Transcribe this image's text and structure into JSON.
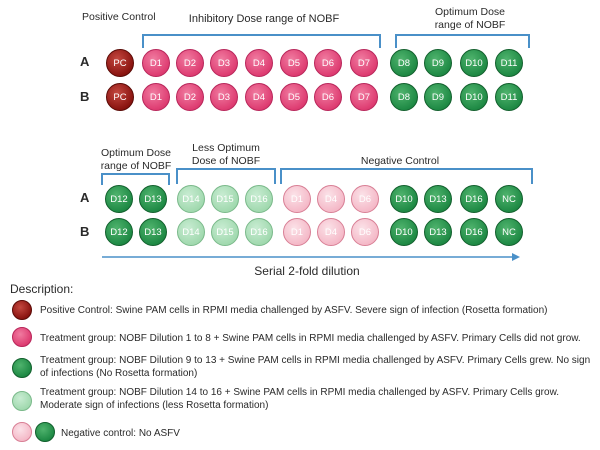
{
  "top_section": {
    "positive_control_label": "Positive Control",
    "inhibitory_label": "Inhibitory Dose range of NOBF",
    "optimum_label_line1": "Optimum Dose",
    "optimum_label_line2": "range of NOBF",
    "rows": [
      {
        "label": "A",
        "wells": [
          "PC",
          "D1",
          "D2",
          "D3",
          "D4",
          "D5",
          "D6",
          "D7",
          "D8",
          "D9",
          "D10",
          "D11"
        ]
      },
      {
        "label": "B",
        "wells": [
          "PC",
          "D1",
          "D2",
          "D3",
          "D4",
          "D5",
          "D6",
          "D7",
          "D8",
          "D9",
          "D10",
          "D11"
        ]
      }
    ]
  },
  "bottom_section": {
    "optimum_label_line1": "Optimum Dose",
    "optimum_label_line2": "range of NOBF",
    "less_optimum_label_line1": "Less Optimum",
    "less_optimum_label_line2": "Dose of NOBF",
    "negative_control_label": "Negative Control",
    "rows": [
      {
        "label": "A",
        "wells": [
          "D12",
          "D13",
          "D14",
          "D15",
          "D16",
          "D1",
          "D4",
          "D6",
          "D10",
          "D13",
          "D16",
          "NC"
        ]
      },
      {
        "label": "B",
        "wells": [
          "D12",
          "D13",
          "D14",
          "D15",
          "D16",
          "D1",
          "D4",
          "D6",
          "D10",
          "D13",
          "D16",
          "NC"
        ]
      }
    ]
  },
  "serial_dilution_label": "Serial 2-fold dilution",
  "description": {
    "heading": "Description:",
    "items": [
      {
        "text": "Positive Control: Swine PAM cells in RPMI media challenged by ASFV. Severe sign of infection (Rosetta formation)"
      },
      {
        "text": "Treatment group: NOBF Dilution 1 to 8 + Swine PAM cells in RPMI media challenged by ASFV. Primary Cells did not grow."
      },
      {
        "text": "Treatment group: NOBF Dilution 9 to 13 + Swine PAM cells in RPMI media challenged by ASFV. Primary Cells grew. No sign of infections (No Rosetta formation)"
      },
      {
        "text": "Treatment group: NOBF Dilution 14 to 16 + Swine PAM cells in RPMI media challenged by ASFV. Primary Cells grow. Moderate sign of infections (less Rosetta formation)"
      },
      {
        "text": "Negative control: No ASFV"
      }
    ]
  },
  "colors": {
    "positive_control": "#8a1410",
    "inhibitory": "#de3d72",
    "optimum": "#1f8a45",
    "less_optimum": "#9fd8ad",
    "negative_pink": "#f4b7c6",
    "bracket": "#4a90c8"
  }
}
